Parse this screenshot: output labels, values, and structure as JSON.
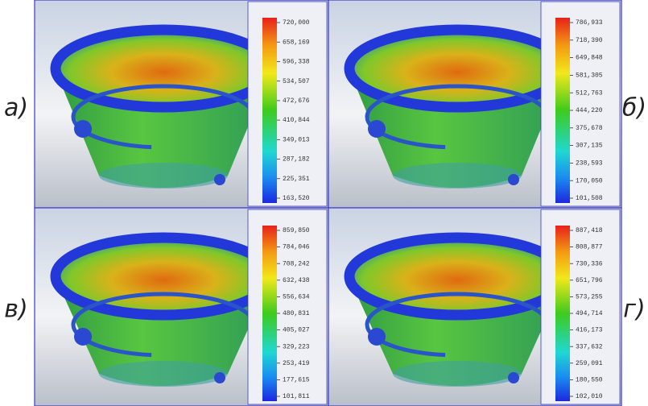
{
  "panels": [
    {
      "label": "а)",
      "legend": [
        "720,000",
        "658,169",
        "596,338",
        "534,507",
        "472,676",
        "410,844",
        "349,013",
        "287,182",
        "225,351",
        "163,520"
      ]
    },
    {
      "label": "б)",
      "legend": [
        "786,933",
        "718,390",
        "649,848",
        "581,305",
        "512,763",
        "444,220",
        "375,678",
        "307,135",
        "238,593",
        "170,050",
        "101,508"
      ]
    },
    {
      "label": "в)",
      "legend": [
        "859,850",
        "784,046",
        "708,242",
        "632,438",
        "556,634",
        "480,831",
        "405,027",
        "329,223",
        "253,419",
        "177,615",
        "101,811"
      ]
    },
    {
      "label": "г)",
      "legend": [
        "887,418",
        "808,877",
        "730,336",
        "651,796",
        "573,255",
        "494,714",
        "416,173",
        "337,632",
        "259,091",
        "180,550",
        "102,010"
      ]
    }
  ]
}
